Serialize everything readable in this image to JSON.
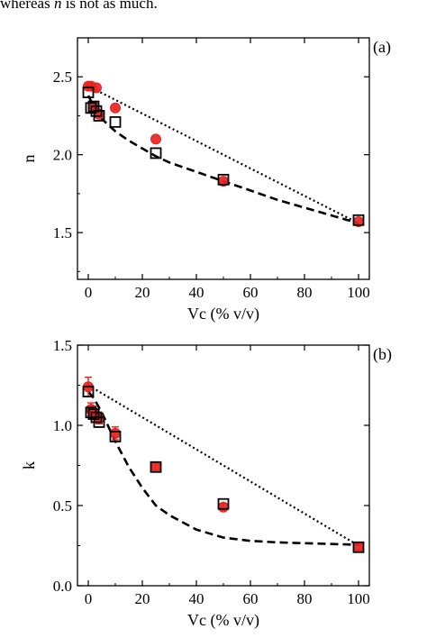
{
  "caption": {
    "prefix": "whereas ",
    "var": "n",
    "suffix": " is not as much."
  },
  "colors": {
    "marker_red": "#e8231f",
    "marker_square": "#000000",
    "line": "#000000"
  },
  "chart_data": [
    {
      "type": "scatter",
      "panel_label": "(a)",
      "xlabel": "Vc (% v/v)",
      "ylabel": "n",
      "xlim": [
        -4,
        104
      ],
      "ylim": [
        1.2,
        2.75
      ],
      "xticks": [
        0,
        20,
        40,
        60,
        80,
        100
      ],
      "yticks": [
        1.5,
        2.0,
        2.5
      ],
      "ytick_labels": [
        "1.5",
        "2.0",
        "2.5"
      ],
      "series": [
        {
          "marker": "circle-filled",
          "x": [
            0,
            1,
            2,
            3,
            4,
            10,
            25,
            50,
            100
          ],
          "y": [
            2.44,
            2.44,
            2.31,
            2.43,
            2.26,
            2.3,
            2.1,
            1.83,
            1.57
          ]
        },
        {
          "marker": "square-open",
          "x": [
            0,
            1,
            2,
            3,
            4,
            10,
            25,
            50,
            100
          ],
          "y": [
            2.4,
            2.3,
            2.31,
            2.28,
            2.25,
            2.21,
            2.01,
            1.84,
            1.58
          ]
        },
        {
          "line": "dotted",
          "x": [
            0,
            100
          ],
          "y": [
            2.44,
            1.56
          ]
        },
        {
          "line": "dashed",
          "x": [
            0,
            2,
            5,
            10,
            15,
            20,
            25,
            30,
            40,
            50,
            60,
            70,
            80,
            90,
            100
          ],
          "y": [
            2.38,
            2.31,
            2.23,
            2.15,
            2.09,
            2.04,
            1.99,
            1.95,
            1.89,
            1.83,
            1.77,
            1.71,
            1.66,
            1.61,
            1.56
          ]
        }
      ]
    },
    {
      "type": "scatter",
      "panel_label": "(b)",
      "xlabel": "Vc (% v/v)",
      "ylabel": "k",
      "xlim": [
        -4,
        104
      ],
      "ylim": [
        0.0,
        1.5
      ],
      "xticks": [
        0,
        20,
        40,
        60,
        80,
        100
      ],
      "yticks": [
        0.0,
        0.5,
        1.0,
        1.5
      ],
      "ytick_labels": [
        "0.0",
        "0.5",
        "1.0",
        "1.5"
      ],
      "series": [
        {
          "marker": "circle-filled-errorbar",
          "x": [
            0,
            1,
            2,
            3,
            4,
            10,
            25,
            50,
            100
          ],
          "y": [
            1.24,
            1.1,
            1.08,
            1.06,
            1.04,
            0.95,
            0.74,
            0.49,
            0.24
          ],
          "err": [
            0.06,
            0.04,
            0.04,
            0.04,
            0.03,
            0.04,
            0.03,
            0.02,
            0.02
          ]
        },
        {
          "marker": "square-open",
          "x": [
            0,
            1,
            2,
            3,
            4,
            10,
            25,
            50,
            100
          ],
          "y": [
            1.21,
            1.08,
            1.07,
            1.05,
            1.02,
            0.93,
            0.74,
            0.51,
            0.24
          ]
        },
        {
          "line": "dotted",
          "x": [
            0,
            100
          ],
          "y": [
            1.25,
            0.25
          ]
        },
        {
          "line": "dashed",
          "x": [
            0,
            2,
            5,
            10,
            15,
            20,
            25,
            30,
            40,
            50,
            60,
            70,
            80,
            90,
            100
          ],
          "y": [
            1.21,
            1.17,
            1.08,
            0.9,
            0.74,
            0.61,
            0.5,
            0.44,
            0.35,
            0.3,
            0.28,
            0.27,
            0.265,
            0.26,
            0.255
          ]
        }
      ]
    }
  ]
}
